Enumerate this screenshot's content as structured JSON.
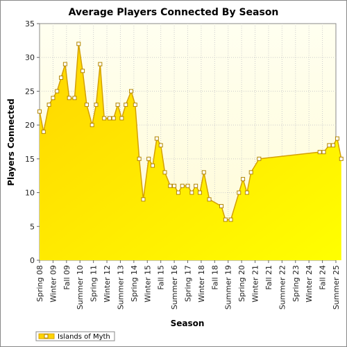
{
  "chart_data": {
    "type": "area",
    "title": "Average Players Connected By Season",
    "xlabel": "Season",
    "ylabel": "Players Connected",
    "ylim": [
      0,
      35
    ],
    "yticks": [
      0,
      5,
      10,
      15,
      20,
      25,
      30,
      35
    ],
    "grid": true,
    "legend_placement": "bottom-left",
    "colors": {
      "fill_top": "#ffd500",
      "fill_bottom": "#ffff00",
      "line": "#d4a000",
      "marker_fill": "#ffffff",
      "marker_stroke": "#b38600",
      "plot_bg_top": "#fffff0",
      "plot_bg_bottom": "#fffbd6",
      "grid": "#cccccc"
    },
    "categories": [
      "Spring 08",
      "Winter 09",
      "Fall 09",
      "Summer 10",
      "Spring 11",
      "Winter 12",
      "Summer 13",
      "Spring 14",
      "Winter 15",
      "Fall 15",
      "Summer 16",
      "Spring 17",
      "Winter 18",
      "Fall 18",
      "Summer 19",
      "Spring 20",
      "Winter 21",
      "Fall 21",
      "Summer 22",
      "Spring 23",
      "Winter 24",
      "Fall 24",
      "Summer 25"
    ],
    "series": [
      {
        "name": "Islands of Myth",
        "points": [
          [
            0.0,
            22
          ],
          [
            0.3,
            19
          ],
          [
            0.7,
            23
          ],
          [
            1.0,
            24
          ],
          [
            1.3,
            25
          ],
          [
            1.6,
            27
          ],
          [
            1.9,
            29
          ],
          [
            2.2,
            24
          ],
          [
            2.6,
            24
          ],
          [
            2.9,
            32
          ],
          [
            3.2,
            28
          ],
          [
            3.5,
            23
          ],
          [
            3.9,
            20
          ],
          [
            4.2,
            23
          ],
          [
            4.5,
            29
          ],
          [
            4.8,
            21
          ],
          [
            5.2,
            21
          ],
          [
            5.5,
            21
          ],
          [
            5.8,
            23
          ],
          [
            6.1,
            21
          ],
          [
            6.4,
            23
          ],
          [
            6.8,
            25
          ],
          [
            7.1,
            23
          ],
          [
            7.4,
            15
          ],
          [
            7.7,
            9
          ],
          [
            8.1,
            15
          ],
          [
            8.4,
            14
          ],
          [
            8.7,
            18
          ],
          [
            9.0,
            17
          ],
          [
            9.3,
            13
          ],
          [
            9.7,
            11
          ],
          [
            10.0,
            11
          ],
          [
            10.3,
            10
          ],
          [
            10.6,
            11
          ],
          [
            11.0,
            11
          ],
          [
            11.3,
            10
          ],
          [
            11.6,
            11
          ],
          [
            11.9,
            10
          ],
          [
            12.2,
            13
          ],
          [
            12.6,
            9
          ],
          [
            13.5,
            8
          ],
          [
            13.8,
            6
          ],
          [
            14.2,
            6
          ],
          [
            14.8,
            10
          ],
          [
            15.1,
            12
          ],
          [
            15.4,
            10
          ],
          [
            15.7,
            13
          ],
          [
            16.3,
            15
          ],
          [
            20.8,
            16
          ],
          [
            21.1,
            16
          ],
          [
            21.5,
            17
          ],
          [
            21.8,
            17
          ],
          [
            22.1,
            18
          ],
          [
            22.4,
            15
          ]
        ]
      }
    ]
  }
}
